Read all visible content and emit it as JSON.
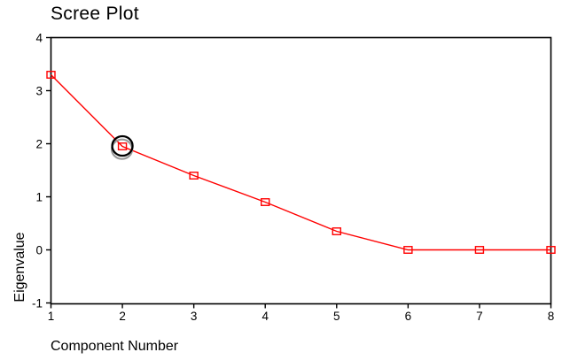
{
  "chart_data": {
    "type": "line",
    "title": "Scree Plot",
    "xlabel": "Component Number",
    "ylabel": "Eigenvalue",
    "x": [
      1,
      2,
      3,
      4,
      5,
      6,
      7,
      8
    ],
    "series": [
      {
        "name": "Eigenvalue",
        "values": [
          3.3,
          1.95,
          1.4,
          0.9,
          0.35,
          0.0,
          0.0,
          0.0
        ]
      }
    ],
    "xlim": [
      1,
      8
    ],
    "ylim": [
      -1,
      4
    ],
    "x_ticks": [
      "1",
      "2",
      "3",
      "4",
      "5",
      "6",
      "7",
      "8"
    ],
    "y_ticks": [
      "-1",
      "0",
      "1",
      "2",
      "3",
      "4"
    ],
    "grid": false,
    "legend": "none",
    "marker": "open-square",
    "line_color": "#ff0000",
    "axis_color": "#000000",
    "background": "#ffffff",
    "annotation": {
      "type": "circled-point",
      "target_component": 2,
      "ring_color": "#000000",
      "shadow_color": "#999999"
    }
  }
}
